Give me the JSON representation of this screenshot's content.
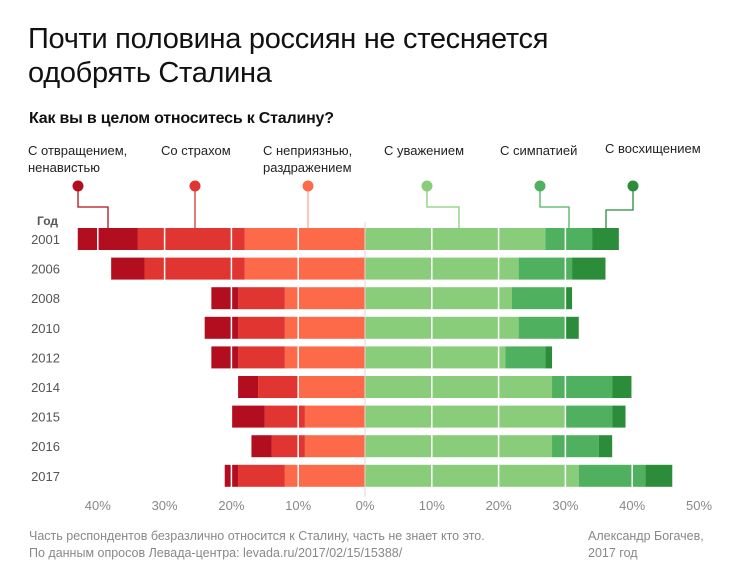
{
  "header": {
    "title_line1": "Почти половина россиян не стесняется",
    "title_line2": "одобрять Сталина",
    "question": "Как вы в целом относитесь к Сталину?"
  },
  "footer": {
    "note_line1": "Часть респондентов безразлично относится к Сталину, часть не знает кто это.",
    "note_line2": "По данным опросов Левада-центра: levada.ru/2017/02/15/15388/",
    "author_line1": "Александр Богачев,",
    "author_line2": "2017 год"
  },
  "chart_data": {
    "type": "bar",
    "orientation": "horizontal",
    "stacked": true,
    "diverging": true,
    "title": "Как вы в целом относитесь к Сталину?",
    "ylabel": "Год",
    "xlabel": "",
    "xlim": [
      -40,
      50
    ],
    "x_ticks": [
      -40,
      -30,
      -20,
      -10,
      0,
      10,
      20,
      30,
      40,
      50
    ],
    "x_tick_labels": [
      "40%",
      "30%",
      "20%",
      "10%",
      "0%",
      "10%",
      "20%",
      "30%",
      "40%",
      "50%"
    ],
    "grid": true,
    "legend_position": "top",
    "categories": [
      "2001",
      "2006",
      "2008",
      "2010",
      "2012",
      "2014",
      "2015",
      "2016",
      "2017"
    ],
    "series": [
      {
        "name": "С отвращением, ненавистью",
        "side": "negative",
        "color": "#b30e1f",
        "values": [
          9,
          5,
          4,
          5,
          4,
          3,
          5,
          3,
          2
        ]
      },
      {
        "name": "Со страхом",
        "side": "negative",
        "color": "#e03530",
        "values": [
          16,
          15,
          7,
          7,
          7,
          6,
          6,
          5,
          7
        ]
      },
      {
        "name": "С неприязнью, раздражением",
        "side": "negative",
        "color": "#fd6a4a",
        "values": [
          18,
          18,
          12,
          12,
          12,
          10,
          9,
          9,
          12
        ]
      },
      {
        "name": "С уважением",
        "side": "positive",
        "color": "#89cd7a",
        "values": [
          27,
          23,
          22,
          23,
          21,
          28,
          30,
          28,
          32
        ]
      },
      {
        "name": "С симпатией",
        "side": "positive",
        "color": "#4fb05f",
        "values": [
          7,
          8,
          8,
          7,
          6,
          9,
          7,
          7,
          10
        ]
      },
      {
        "name": "С восхищением",
        "side": "positive",
        "color": "#2b8c3a",
        "values": [
          4,
          5,
          1,
          2,
          1,
          3,
          2,
          2,
          4
        ]
      }
    ]
  }
}
